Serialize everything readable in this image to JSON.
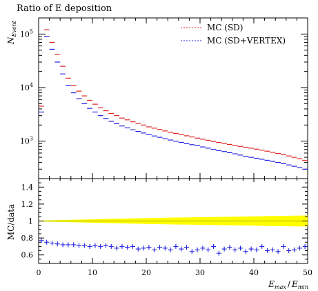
{
  "chart_data": {
    "type": "scatter",
    "title": "Ratio of E deposition",
    "top_panel": {
      "ylabel_main": "N",
      "ylabel_sub": "Event",
      "yscale": "log",
      "ylim": [
        200,
        200000
      ],
      "ytick_labels": [
        {
          "value": 1000,
          "base": "10",
          "exp": "3"
        },
        {
          "value": 10000,
          "base": "10",
          "exp": "4"
        },
        {
          "value": 100000,
          "base": "10",
          "exp": "5"
        }
      ],
      "legend_position": "top-right",
      "series": [
        {
          "name": "MC (SD)",
          "color": "#e02020",
          "x": [
            0.5,
            1.5,
            2.5,
            3.5,
            4.5,
            5.5,
            6.5,
            7.5,
            8.5,
            9.5,
            10.5,
            11.5,
            12.5,
            13.5,
            14.5,
            15.5,
            16.5,
            17.5,
            18.5,
            19.5,
            20.5,
            21.5,
            22.5,
            23.5,
            24.5,
            25.5,
            26.5,
            27.5,
            28.5,
            29.5,
            30.5,
            31.5,
            32.5,
            33.5,
            34.5,
            35.5,
            36.5,
            37.5,
            38.5,
            39.5,
            40.5,
            41.5,
            42.5,
            43.5,
            44.5,
            45.5,
            46.5,
            47.5,
            48.5,
            49.5
          ],
          "y": [
            4500,
            120000,
            70000,
            42000,
            25000,
            15000,
            11000,
            8600,
            7000,
            5800,
            4900,
            4200,
            3700,
            3300,
            3000,
            2700,
            2500,
            2300,
            2150,
            2000,
            1850,
            1750,
            1650,
            1550,
            1470,
            1400,
            1330,
            1260,
            1200,
            1140,
            1090,
            1040,
            990,
            950,
            910,
            870,
            830,
            800,
            770,
            740,
            710,
            680,
            650,
            620,
            590,
            560,
            530,
            500,
            470,
            440
          ]
        },
        {
          "name": "MC (SD+VERTEX)",
          "color": "#2020e0",
          "x": [
            0.5,
            1.5,
            2.5,
            3.5,
            4.5,
            5.5,
            6.5,
            7.5,
            8.5,
            9.5,
            10.5,
            11.5,
            12.5,
            13.5,
            14.5,
            15.5,
            16.5,
            17.5,
            18.5,
            19.5,
            20.5,
            21.5,
            22.5,
            23.5,
            24.5,
            25.5,
            26.5,
            27.5,
            28.5,
            29.5,
            30.5,
            31.5,
            32.5,
            33.5,
            34.5,
            35.5,
            36.5,
            37.5,
            38.5,
            39.5,
            40.5,
            41.5,
            42.5,
            43.5,
            44.5,
            45.5,
            46.5,
            47.5,
            48.5,
            49.5
          ],
          "y": [
            3500,
            90000,
            52000,
            30000,
            18000,
            11000,
            8000,
            6200,
            5000,
            4100,
            3500,
            3000,
            2650,
            2350,
            2120,
            1920,
            1770,
            1630,
            1520,
            1420,
            1330,
            1250,
            1180,
            1110,
            1050,
            1000,
            950,
            900,
            860,
            820,
            780,
            740,
            700,
            670,
            640,
            610,
            580,
            550,
            520,
            500,
            480,
            460,
            440,
            420,
            400,
            380,
            360,
            340,
            320,
            300
          ]
        }
      ]
    },
    "bottom_panel": {
      "ylabel": "MC/data",
      "ylim": [
        0.5,
        1.5
      ],
      "ytick_labels": [
        "0.6",
        "0.8",
        "1",
        "1.2",
        "1.4"
      ],
      "yticks": [
        0.6,
        0.8,
        1.0,
        1.2,
        1.4
      ],
      "band": {
        "color": "#ffff00",
        "center": 1.0,
        "x": [
          0,
          10,
          20,
          30,
          40,
          50
        ],
        "halfwidth": [
          0.005,
          0.02,
          0.035,
          0.045,
          0.055,
          0.065
        ]
      },
      "series": [
        {
          "name": "MC (SD+VERTEX)",
          "color": "#2020e0",
          "x": [
            0.5,
            1.5,
            2.5,
            3.5,
            4.5,
            5.5,
            6.5,
            7.5,
            8.5,
            9.5,
            10.5,
            11.5,
            12.5,
            13.5,
            14.5,
            15.5,
            16.5,
            17.5,
            18.5,
            19.5,
            20.5,
            21.5,
            22.5,
            23.5,
            24.5,
            25.5,
            26.5,
            27.5,
            28.5,
            29.5,
            30.5,
            31.5,
            32.5,
            33.5,
            34.5,
            35.5,
            36.5,
            37.5,
            38.5,
            39.5,
            40.5,
            41.5,
            42.5,
            43.5,
            44.5,
            45.5,
            46.5,
            47.5,
            48.5,
            49.5
          ],
          "y": [
            0.77,
            0.75,
            0.74,
            0.73,
            0.72,
            0.72,
            0.72,
            0.71,
            0.71,
            0.7,
            0.71,
            0.7,
            0.71,
            0.7,
            0.68,
            0.7,
            0.69,
            0.7,
            0.67,
            0.68,
            0.69,
            0.66,
            0.69,
            0.68,
            0.66,
            0.7,
            0.67,
            0.69,
            0.64,
            0.66,
            0.68,
            0.66,
            0.7,
            0.62,
            0.67,
            0.69,
            0.66,
            0.68,
            0.64,
            0.67,
            0.66,
            0.7,
            0.65,
            0.66,
            0.64,
            0.7,
            0.65,
            0.66,
            0.68,
            0.7
          ]
        }
      ]
    },
    "xlabel_main": "E",
    "xlabel_sub1": "max",
    "xlabel_slash": "/",
    "xlabel_main2": "E",
    "xlabel_sub2": "min",
    "xlim": [
      0,
      50
    ],
    "xtick_labels": [
      "0",
      "10",
      "20",
      "30",
      "40",
      "50"
    ],
    "xticks": [
      0,
      10,
      20,
      30,
      40,
      50
    ]
  }
}
